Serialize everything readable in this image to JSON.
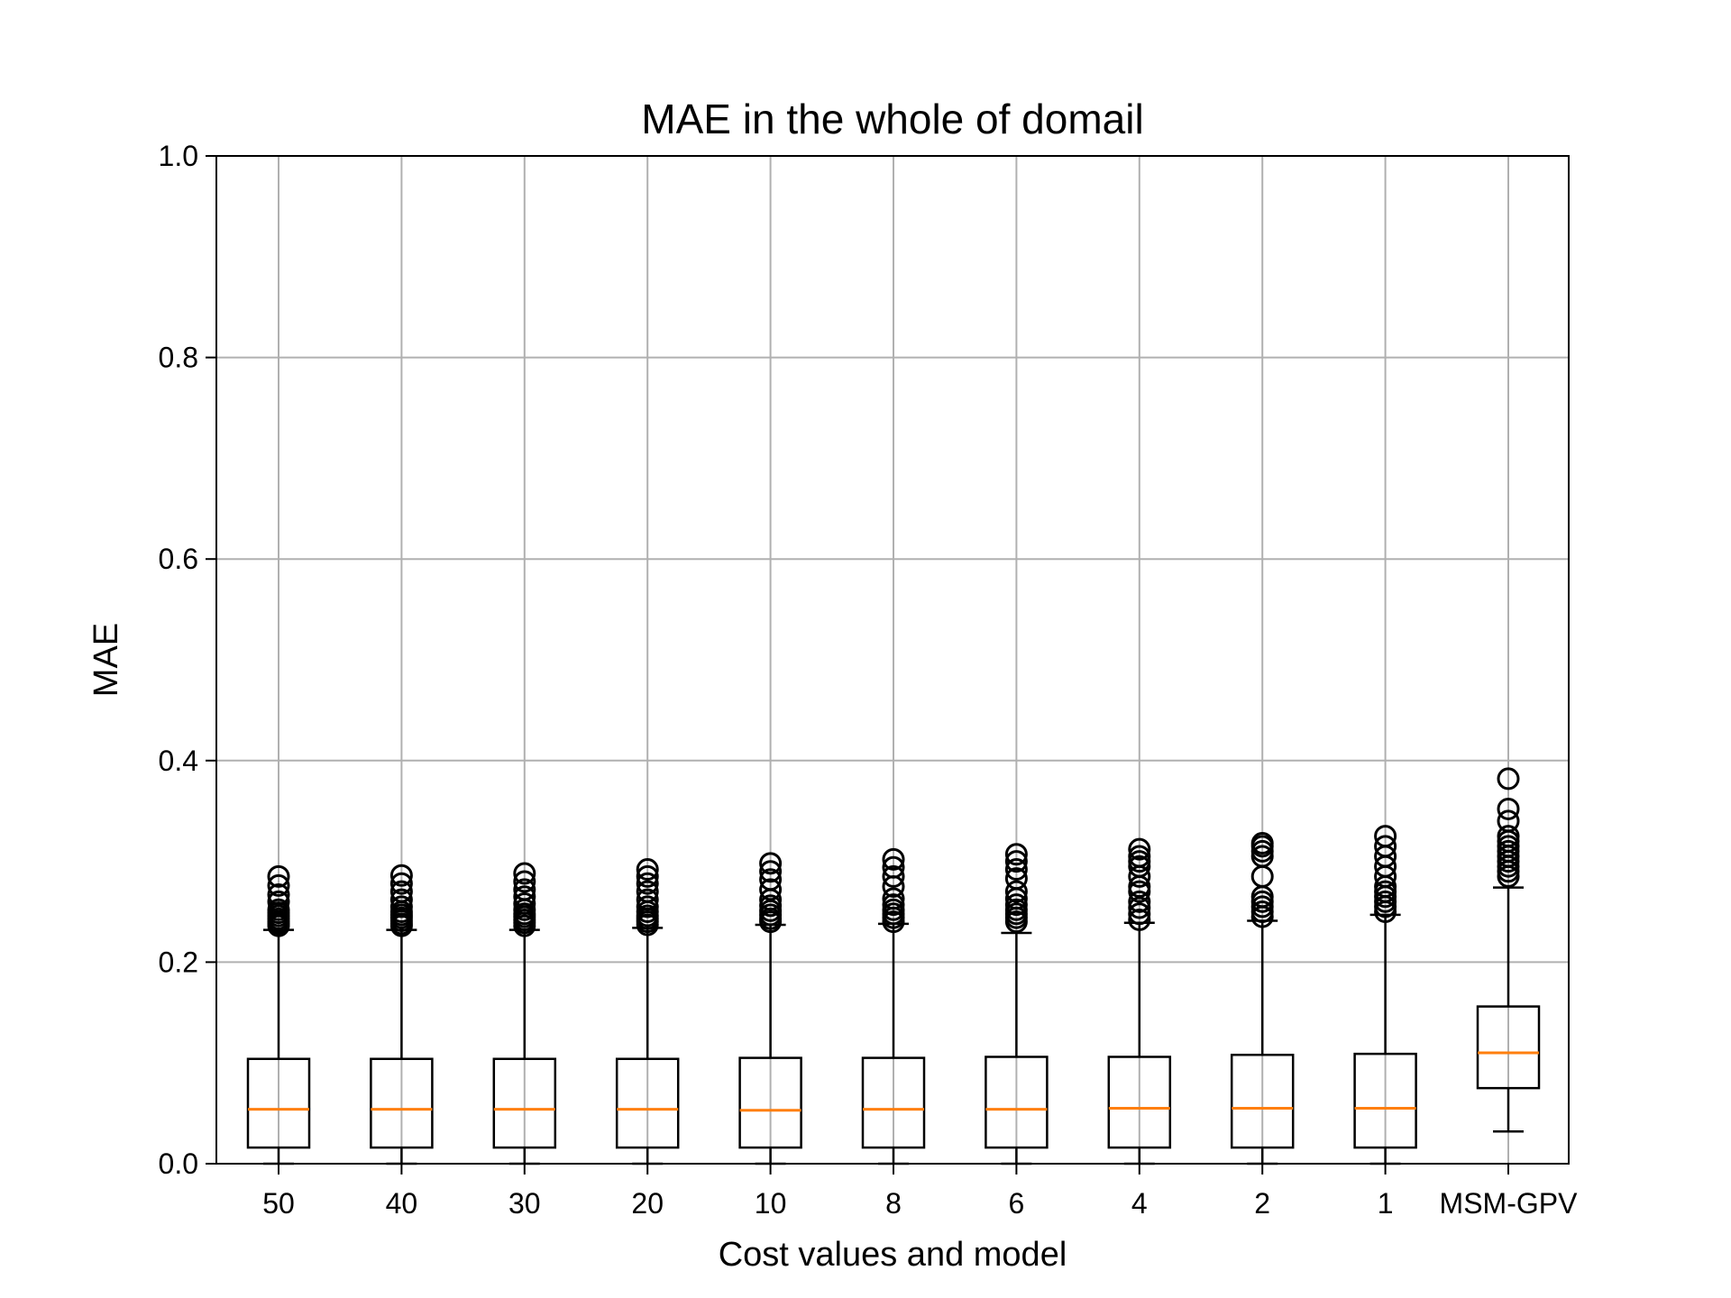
{
  "chart_data": {
    "type": "box",
    "title": "MAE in the whole of domail",
    "xlabel": "Cost values and model",
    "ylabel": "MAE",
    "ylim": [
      0,
      1.0
    ],
    "yticks": [
      "0.0",
      "0.2",
      "0.4",
      "0.6",
      "0.8",
      "1.0"
    ],
    "grid": true,
    "colors": {
      "median": "#ff7f0e",
      "box": "#000000",
      "grid": "#b0b0b0"
    },
    "categories": [
      "50",
      "40",
      "30",
      "20",
      "10",
      "8",
      "6",
      "4",
      "2",
      "1",
      "MSM-GPV"
    ],
    "boxes": [
      {
        "whislo": 0.0,
        "q1": 0.016,
        "med": 0.054,
        "q3": 0.104,
        "whishi": 0.232,
        "fliers": [
          0.236,
          0.238,
          0.24,
          0.243,
          0.246,
          0.249,
          0.252,
          0.26,
          0.267,
          0.276,
          0.285
        ]
      },
      {
        "whislo": 0.0,
        "q1": 0.016,
        "med": 0.054,
        "q3": 0.104,
        "whishi": 0.232,
        "fliers": [
          0.236,
          0.238,
          0.241,
          0.244,
          0.247,
          0.25,
          0.255,
          0.262,
          0.27,
          0.278,
          0.286
        ]
      },
      {
        "whislo": 0.0,
        "q1": 0.016,
        "med": 0.054,
        "q3": 0.104,
        "whishi": 0.232,
        "fliers": [
          0.236,
          0.239,
          0.242,
          0.245,
          0.248,
          0.252,
          0.258,
          0.265,
          0.272,
          0.28,
          0.288
        ]
      },
      {
        "whislo": 0.0,
        "q1": 0.016,
        "med": 0.054,
        "q3": 0.104,
        "whishi": 0.234,
        "fliers": [
          0.237,
          0.24,
          0.243,
          0.246,
          0.25,
          0.255,
          0.262,
          0.27,
          0.278,
          0.285,
          0.292
        ]
      },
      {
        "whislo": 0.0,
        "q1": 0.016,
        "med": 0.053,
        "q3": 0.105,
        "whishi": 0.237,
        "fliers": [
          0.24,
          0.243,
          0.247,
          0.251,
          0.256,
          0.262,
          0.272,
          0.282,
          0.29,
          0.298
        ]
      },
      {
        "whislo": 0.0,
        "q1": 0.016,
        "med": 0.054,
        "q3": 0.105,
        "whishi": 0.238,
        "fliers": [
          0.24,
          0.244,
          0.248,
          0.252,
          0.257,
          0.263,
          0.275,
          0.285,
          0.294,
          0.302
        ]
      },
      {
        "whislo": 0.0,
        "q1": 0.016,
        "med": 0.054,
        "q3": 0.106,
        "whishi": 0.229,
        "fliers": [
          0.24,
          0.244,
          0.248,
          0.252,
          0.257,
          0.263,
          0.27,
          0.283,
          0.292,
          0.3,
          0.307
        ]
      },
      {
        "whislo": 0.0,
        "q1": 0.016,
        "med": 0.055,
        "q3": 0.106,
        "whishi": 0.239,
        "fliers": [
          0.242,
          0.248,
          0.254,
          0.26,
          0.27,
          0.275,
          0.285,
          0.295,
          0.3,
          0.305,
          0.312
        ]
      },
      {
        "whislo": 0.0,
        "q1": 0.016,
        "med": 0.055,
        "q3": 0.108,
        "whishi": 0.241,
        "fliers": [
          0.245,
          0.25,
          0.255,
          0.26,
          0.265,
          0.285,
          0.305,
          0.31,
          0.315,
          0.318
        ]
      },
      {
        "whislo": 0.0,
        "q1": 0.016,
        "med": 0.055,
        "q3": 0.109,
        "whishi": 0.247,
        "fliers": [
          0.25,
          0.255,
          0.26,
          0.265,
          0.27,
          0.275,
          0.285,
          0.295,
          0.305,
          0.315,
          0.325
        ]
      },
      {
        "whislo": 0.032,
        "q1": 0.075,
        "med": 0.11,
        "q3": 0.156,
        "whishi": 0.274,
        "fliers": [
          0.285,
          0.29,
          0.295,
          0.3,
          0.305,
          0.31,
          0.315,
          0.32,
          0.325,
          0.34,
          0.352,
          0.382
        ]
      }
    ]
  }
}
